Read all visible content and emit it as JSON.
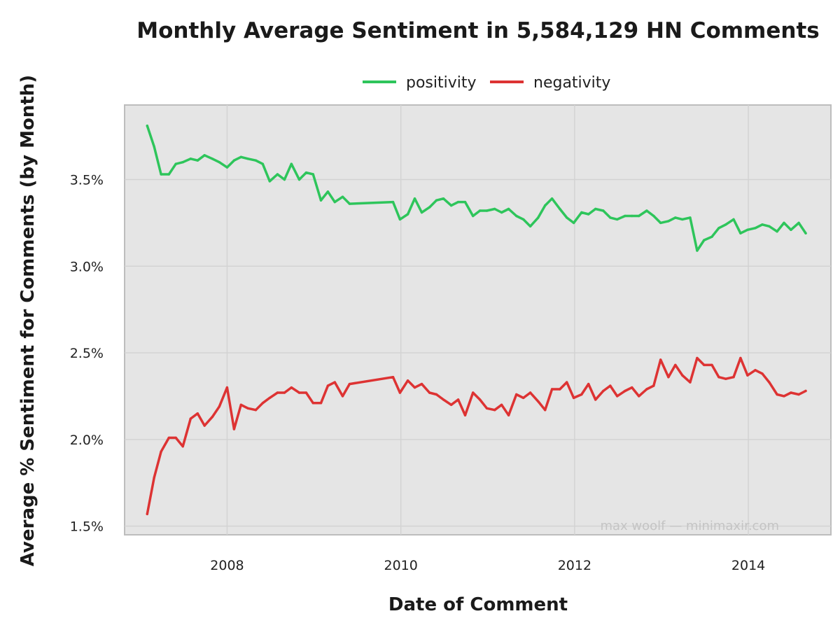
{
  "chart_data": {
    "type": "line",
    "title": "Monthly Average Sentiment in 5,584,129 HN Comments",
    "xlabel": "Date of Comment",
    "ylabel": "Average % Sentiment for Comments (by Month)",
    "xlim": [
      2006.82,
      2014.95
    ],
    "ylim": [
      1.45,
      3.93
    ],
    "x_ticks": [
      {
        "value": 2008,
        "label": "2008"
      },
      {
        "value": 2010,
        "label": "2010"
      },
      {
        "value": 2012,
        "label": "2012"
      },
      {
        "value": 2014,
        "label": "2014"
      }
    ],
    "y_ticks": [
      {
        "value": 1.5,
        "label": "1.5%"
      },
      {
        "value": 2.0,
        "label": "2.0%"
      },
      {
        "value": 2.5,
        "label": "2.5%"
      },
      {
        "value": 3.0,
        "label": "3.0%"
      },
      {
        "value": 3.5,
        "label": "3.5%"
      }
    ],
    "grid": true,
    "legend_position": "top-center",
    "watermark": "max woolf — minimaxir.com",
    "colors": {
      "panel": "#e5e5e5",
      "grid": "#d3d3d3",
      "border": "#bdbdbd"
    },
    "series": [
      {
        "name": "positivity",
        "color": "#2ec55b",
        "points": [
          [
            2007.08,
            3.81
          ],
          [
            2007.16,
            3.69
          ],
          [
            2007.24,
            3.53
          ],
          [
            2007.33,
            3.53
          ],
          [
            2007.41,
            3.59
          ],
          [
            2007.49,
            3.6
          ],
          [
            2007.58,
            3.62
          ],
          [
            2007.66,
            3.61
          ],
          [
            2007.74,
            3.64
          ],
          [
            2007.83,
            3.62
          ],
          [
            2007.91,
            3.6
          ],
          [
            2008.0,
            3.57
          ],
          [
            2008.08,
            3.61
          ],
          [
            2008.16,
            3.63
          ],
          [
            2008.24,
            3.62
          ],
          [
            2008.33,
            3.61
          ],
          [
            2008.41,
            3.59
          ],
          [
            2008.49,
            3.49
          ],
          [
            2008.58,
            3.53
          ],
          [
            2008.66,
            3.5
          ],
          [
            2008.74,
            3.59
          ],
          [
            2008.83,
            3.5
          ],
          [
            2008.91,
            3.54
          ],
          [
            2008.99,
            3.53
          ],
          [
            2009.08,
            3.38
          ],
          [
            2009.16,
            3.43
          ],
          [
            2009.24,
            3.37
          ],
          [
            2009.33,
            3.4
          ],
          [
            2009.41,
            3.36
          ],
          [
            2009.91,
            3.37
          ],
          [
            2009.99,
            3.27
          ],
          [
            2010.08,
            3.3
          ],
          [
            2010.16,
            3.39
          ],
          [
            2010.24,
            3.31
          ],
          [
            2010.33,
            3.34
          ],
          [
            2010.41,
            3.38
          ],
          [
            2010.49,
            3.39
          ],
          [
            2010.58,
            3.35
          ],
          [
            2010.66,
            3.37
          ],
          [
            2010.74,
            3.37
          ],
          [
            2010.83,
            3.29
          ],
          [
            2010.91,
            3.32
          ],
          [
            2010.99,
            3.32
          ],
          [
            2011.08,
            3.33
          ],
          [
            2011.16,
            3.31
          ],
          [
            2011.24,
            3.33
          ],
          [
            2011.33,
            3.29
          ],
          [
            2011.41,
            3.27
          ],
          [
            2011.49,
            3.23
          ],
          [
            2011.58,
            3.28
          ],
          [
            2011.66,
            3.35
          ],
          [
            2011.74,
            3.39
          ],
          [
            2011.83,
            3.33
          ],
          [
            2011.91,
            3.28
          ],
          [
            2011.99,
            3.25
          ],
          [
            2012.08,
            3.31
          ],
          [
            2012.16,
            3.3
          ],
          [
            2012.24,
            3.33
          ],
          [
            2012.33,
            3.32
          ],
          [
            2012.41,
            3.28
          ],
          [
            2012.49,
            3.27
          ],
          [
            2012.58,
            3.29
          ],
          [
            2012.66,
            3.29
          ],
          [
            2012.74,
            3.29
          ],
          [
            2012.83,
            3.32
          ],
          [
            2012.91,
            3.29
          ],
          [
            2012.99,
            3.25
          ],
          [
            2013.08,
            3.26
          ],
          [
            2013.16,
            3.28
          ],
          [
            2013.24,
            3.27
          ],
          [
            2013.33,
            3.28
          ],
          [
            2013.41,
            3.09
          ],
          [
            2013.49,
            3.15
          ],
          [
            2013.58,
            3.17
          ],
          [
            2013.66,
            3.22
          ],
          [
            2013.74,
            3.24
          ],
          [
            2013.83,
            3.27
          ],
          [
            2013.91,
            3.19
          ],
          [
            2013.99,
            3.21
          ],
          [
            2014.08,
            3.22
          ],
          [
            2014.16,
            3.24
          ],
          [
            2014.24,
            3.23
          ],
          [
            2014.33,
            3.2
          ],
          [
            2014.41,
            3.25
          ],
          [
            2014.49,
            3.21
          ],
          [
            2014.58,
            3.25
          ],
          [
            2014.66,
            3.19
          ]
        ]
      },
      {
        "name": "negativity",
        "color": "#dd3333",
        "points": [
          [
            2007.08,
            1.57
          ],
          [
            2007.16,
            1.78
          ],
          [
            2007.24,
            1.93
          ],
          [
            2007.33,
            2.01
          ],
          [
            2007.41,
            2.01
          ],
          [
            2007.49,
            1.96
          ],
          [
            2007.58,
            2.12
          ],
          [
            2007.66,
            2.15
          ],
          [
            2007.74,
            2.08
          ],
          [
            2007.83,
            2.13
          ],
          [
            2007.91,
            2.19
          ],
          [
            2008.0,
            2.3
          ],
          [
            2008.08,
            2.06
          ],
          [
            2008.16,
            2.2
          ],
          [
            2008.24,
            2.18
          ],
          [
            2008.33,
            2.17
          ],
          [
            2008.41,
            2.21
          ],
          [
            2008.49,
            2.24
          ],
          [
            2008.58,
            2.27
          ],
          [
            2008.66,
            2.27
          ],
          [
            2008.74,
            2.3
          ],
          [
            2008.83,
            2.27
          ],
          [
            2008.91,
            2.27
          ],
          [
            2008.99,
            2.21
          ],
          [
            2009.08,
            2.21
          ],
          [
            2009.16,
            2.31
          ],
          [
            2009.24,
            2.33
          ],
          [
            2009.33,
            2.25
          ],
          [
            2009.41,
            2.32
          ],
          [
            2009.91,
            2.36
          ],
          [
            2009.99,
            2.27
          ],
          [
            2010.08,
            2.34
          ],
          [
            2010.16,
            2.3
          ],
          [
            2010.24,
            2.32
          ],
          [
            2010.33,
            2.27
          ],
          [
            2010.41,
            2.26
          ],
          [
            2010.49,
            2.23
          ],
          [
            2010.58,
            2.2
          ],
          [
            2010.66,
            2.23
          ],
          [
            2010.74,
            2.14
          ],
          [
            2010.83,
            2.27
          ],
          [
            2010.91,
            2.23
          ],
          [
            2010.99,
            2.18
          ],
          [
            2011.08,
            2.17
          ],
          [
            2011.16,
            2.2
          ],
          [
            2011.24,
            2.14
          ],
          [
            2011.33,
            2.26
          ],
          [
            2011.41,
            2.24
          ],
          [
            2011.49,
            2.27
          ],
          [
            2011.58,
            2.22
          ],
          [
            2011.66,
            2.17
          ],
          [
            2011.74,
            2.29
          ],
          [
            2011.83,
            2.29
          ],
          [
            2011.91,
            2.33
          ],
          [
            2011.99,
            2.24
          ],
          [
            2012.08,
            2.26
          ],
          [
            2012.16,
            2.32
          ],
          [
            2012.24,
            2.23
          ],
          [
            2012.33,
            2.28
          ],
          [
            2012.41,
            2.31
          ],
          [
            2012.49,
            2.25
          ],
          [
            2012.58,
            2.28
          ],
          [
            2012.66,
            2.3
          ],
          [
            2012.74,
            2.25
          ],
          [
            2012.83,
            2.29
          ],
          [
            2012.91,
            2.31
          ],
          [
            2012.99,
            2.46
          ],
          [
            2013.08,
            2.36
          ],
          [
            2013.16,
            2.43
          ],
          [
            2013.24,
            2.37
          ],
          [
            2013.33,
            2.33
          ],
          [
            2013.41,
            2.47
          ],
          [
            2013.49,
            2.43
          ],
          [
            2013.58,
            2.43
          ],
          [
            2013.66,
            2.36
          ],
          [
            2013.74,
            2.35
          ],
          [
            2013.83,
            2.36
          ],
          [
            2013.91,
            2.47
          ],
          [
            2013.99,
            2.37
          ],
          [
            2014.08,
            2.4
          ],
          [
            2014.16,
            2.38
          ],
          [
            2014.24,
            2.33
          ],
          [
            2014.33,
            2.26
          ],
          [
            2014.41,
            2.25
          ],
          [
            2014.49,
            2.27
          ],
          [
            2014.58,
            2.26
          ],
          [
            2014.66,
            2.28
          ]
        ]
      }
    ]
  }
}
